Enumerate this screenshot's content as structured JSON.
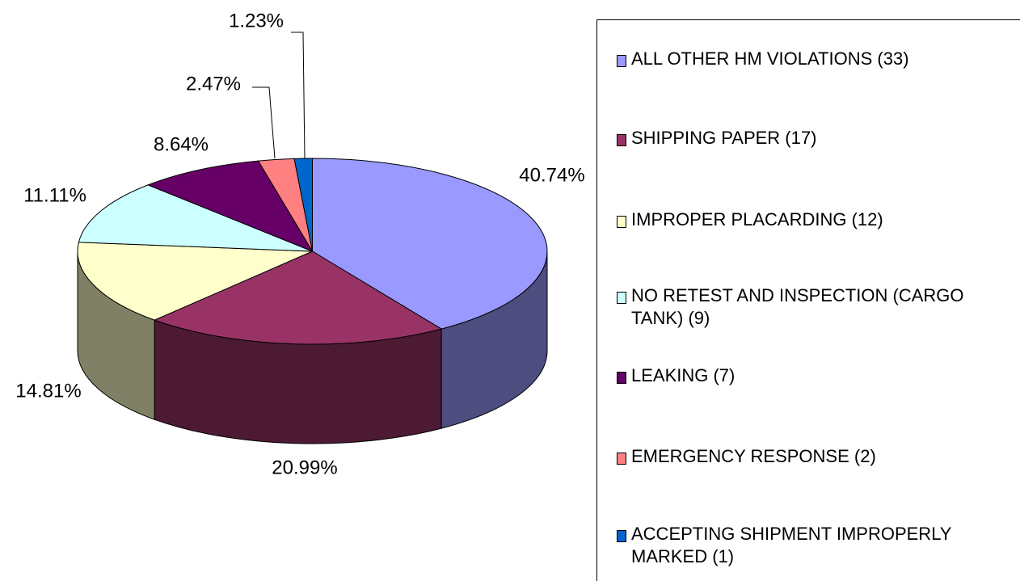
{
  "chart_data": {
    "type": "pie3d",
    "categories": [
      "ALL OTHER HM VIOLATIONS (33)",
      "SHIPPING PAPER (17)",
      "IMPROPER PLACARDING (12)",
      "NO RETEST AND INSPECTION (CARGO TANK) (9)",
      "LEAKING (7)",
      "EMERGENCY RESPONSE (2)",
      "ACCEPTING SHIPMENT IMPROPERLY MARKED (1)"
    ],
    "values": [
      40.74,
      20.99,
      14.81,
      11.11,
      8.64,
      2.47,
      1.23
    ],
    "value_labels": [
      "40.74%",
      "20.99%",
      "14.81%",
      "11.11%",
      "8.64%",
      "2.47%",
      "1.23%"
    ],
    "colors": [
      "#9999ff",
      "#993366",
      "#ffffcc",
      "#ccffff",
      "#660066",
      "#ff8080",
      "#0066cc"
    ],
    "legend": "right"
  }
}
